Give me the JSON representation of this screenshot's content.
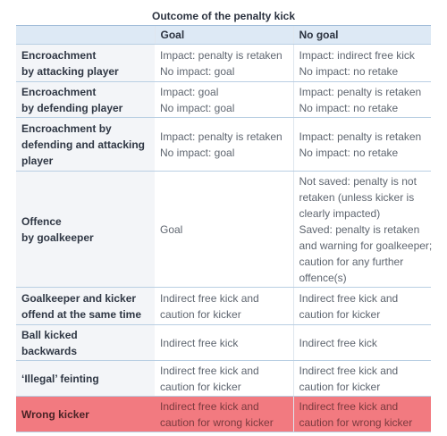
{
  "table": {
    "title": "Outcome of the penalty kick",
    "columns": [
      "Goal",
      "No goal"
    ],
    "rows": [
      [
        [
          "Encroachment",
          "by attacking player"
        ],
        [
          "Impact: penalty is retaken",
          "No impact: goal"
        ],
        [
          "Impact: indirect free kick",
          "No impact: no retake"
        ]
      ],
      [
        [
          "Encroachment",
          "by defending player"
        ],
        [
          "Impact: goal",
          "No impact: goal"
        ],
        [
          "Impact: penalty is retaken",
          "No impact: no retake"
        ]
      ],
      [
        [
          "Encroachment by",
          "defending and attacking",
          "player"
        ],
        [
          "Impact: penalty is retaken",
          "No impact: goal"
        ],
        [
          "Impact: penalty is retaken",
          "No impact: no retake"
        ]
      ],
      [
        [
          "Offence",
          "by goalkeeper"
        ],
        [
          "Goal"
        ],
        [
          "Not saved: penalty is not",
          "retaken (unless kicker is",
          "clearly impacted)",
          "Saved: penalty is retaken",
          "and warning for goalkeeper;",
          "caution for any further",
          "offence(s)"
        ]
      ],
      [
        [
          "Goalkeeper and kicker",
          "offend at the same time"
        ],
        [
          "Indirect free kick and",
          "caution for kicker"
        ],
        [
          "Indirect free kick and",
          "caution for kicker"
        ]
      ],
      [
        [
          "Ball kicked",
          "backwards"
        ],
        [
          "Indirect free kick"
        ],
        [
          "Indirect free kick"
        ]
      ],
      [
        [
          "‘Illegal’ feinting"
        ],
        [
          "Indirect free kick and",
          "caution for kicker"
        ],
        [
          "Indirect free kick and",
          "caution for kicker"
        ]
      ],
      [
        [
          "Wrong kicker"
        ],
        [
          "Indirect free kick and",
          "caution for wrong kicker"
        ],
        [
          "Indirect free kick and",
          "caution for wrong kicker"
        ]
      ]
    ]
  }
}
